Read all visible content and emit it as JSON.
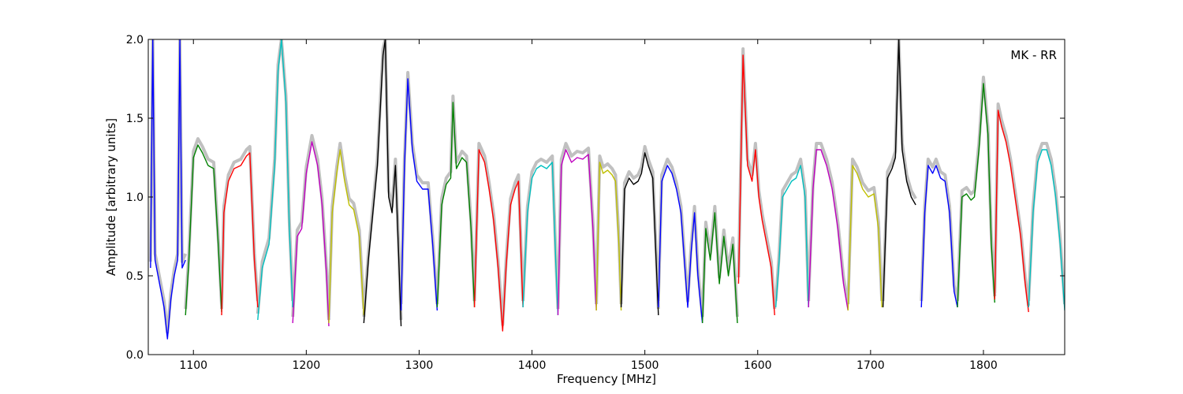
{
  "chart_data": {
    "type": "line",
    "title": "",
    "annotation": "MK - RR",
    "xlabel": "Frequency [MHz]",
    "ylabel": "Amplitude [arbitrary units]",
    "xlim": [
      1060,
      1872
    ],
    "ylim": [
      0.0,
      2.0
    ],
    "xticks": [
      1100,
      1200,
      1300,
      1400,
      1500,
      1600,
      1700,
      1800
    ],
    "xtick_labels": [
      "1100",
      "1200",
      "1300",
      "1400",
      "1500",
      "1600",
      "1700",
      "1800"
    ],
    "yticks": [
      0.0,
      0.5,
      1.0,
      1.5,
      2.0
    ],
    "ytick_labels": [
      "0.0",
      "0.5",
      "1.0",
      "1.5",
      "2.0"
    ],
    "grid": false,
    "legend": "none",
    "background_color": "#c0c0c0",
    "series": [
      {
        "color": "#0000ff",
        "points": [
          [
            1062,
            0.55
          ],
          [
            1064,
            2.0
          ],
          [
            1066,
            0.6
          ],
          [
            1070,
            0.45
          ],
          [
            1074,
            0.3
          ],
          [
            1077,
            0.1
          ],
          [
            1080,
            0.35
          ],
          [
            1083,
            0.5
          ],
          [
            1086,
            0.6
          ],
          [
            1088,
            2.0
          ],
          [
            1090,
            0.55
          ],
          [
            1093,
            0.6
          ]
        ]
      },
      {
        "color": "#008000",
        "points": [
          [
            1093,
            0.25
          ],
          [
            1096,
            0.6
          ],
          [
            1100,
            1.25
          ],
          [
            1104,
            1.33
          ],
          [
            1108,
            1.28
          ],
          [
            1113,
            1.2
          ],
          [
            1118,
            1.18
          ],
          [
            1122,
            0.7
          ],
          [
            1125,
            0.27
          ]
        ]
      },
      {
        "color": "#ff0000",
        "points": [
          [
            1125,
            0.25
          ],
          [
            1127,
            0.9
          ],
          [
            1131,
            1.1
          ],
          [
            1136,
            1.18
          ],
          [
            1142,
            1.2
          ],
          [
            1147,
            1.26
          ],
          [
            1150,
            1.28
          ],
          [
            1154,
            0.6
          ],
          [
            1157,
            0.3
          ]
        ]
      },
      {
        "color": "#00bfbf",
        "points": [
          [
            1157,
            0.22
          ],
          [
            1161,
            0.55
          ],
          [
            1167,
            0.7
          ],
          [
            1172,
            1.2
          ],
          [
            1175,
            1.8
          ],
          [
            1178,
            2.0
          ],
          [
            1182,
            1.6
          ],
          [
            1185,
            0.8
          ],
          [
            1188,
            0.3
          ]
        ]
      },
      {
        "color": "#bf00bf",
        "points": [
          [
            1188,
            0.2
          ],
          [
            1192,
            0.75
          ],
          [
            1196,
            0.8
          ],
          [
            1200,
            1.15
          ],
          [
            1205,
            1.35
          ],
          [
            1210,
            1.2
          ],
          [
            1214,
            0.95
          ],
          [
            1218,
            0.5
          ],
          [
            1220,
            0.18
          ]
        ]
      },
      {
        "color": "#bfbf00",
        "points": [
          [
            1220,
            0.2
          ],
          [
            1223,
            0.9
          ],
          [
            1227,
            1.15
          ],
          [
            1230,
            1.3
          ],
          [
            1234,
            1.1
          ],
          [
            1238,
            0.95
          ],
          [
            1242,
            0.92
          ],
          [
            1247,
            0.75
          ],
          [
            1251,
            0.25
          ]
        ]
      },
      {
        "color": "#000000",
        "points": [
          [
            1251,
            0.2
          ],
          [
            1255,
            0.6
          ],
          [
            1259,
            0.9
          ],
          [
            1263,
            1.2
          ],
          [
            1268,
            1.9
          ],
          [
            1270,
            2.0
          ],
          [
            1273,
            1.0
          ],
          [
            1276,
            0.9
          ],
          [
            1279,
            1.2
          ],
          [
            1282,
            0.6
          ],
          [
            1284,
            0.18
          ]
        ]
      },
      {
        "color": "#0000ff",
        "points": [
          [
            1284,
            0.28
          ],
          [
            1287,
            1.2
          ],
          [
            1290,
            1.75
          ],
          [
            1294,
            1.3
          ],
          [
            1298,
            1.1
          ],
          [
            1303,
            1.05
          ],
          [
            1308,
            1.05
          ],
          [
            1312,
            0.7
          ],
          [
            1316,
            0.28
          ]
        ]
      },
      {
        "color": "#008000",
        "points": [
          [
            1316,
            0.3
          ],
          [
            1320,
            0.95
          ],
          [
            1324,
            1.08
          ],
          [
            1328,
            1.12
          ],
          [
            1330,
            1.6
          ],
          [
            1333,
            1.18
          ],
          [
            1338,
            1.25
          ],
          [
            1342,
            1.22
          ],
          [
            1346,
            0.8
          ],
          [
            1349,
            0.3
          ]
        ]
      },
      {
        "color": "#ff0000",
        "points": [
          [
            1349,
            0.3
          ],
          [
            1353,
            1.3
          ],
          [
            1358,
            1.22
          ],
          [
            1362,
            1.05
          ],
          [
            1366,
            0.85
          ],
          [
            1370,
            0.55
          ],
          [
            1374,
            0.15
          ],
          [
            1377,
            0.55
          ],
          [
            1381,
            0.95
          ],
          [
            1385,
            1.05
          ],
          [
            1388,
            1.1
          ],
          [
            1392,
            0.3
          ]
        ]
      },
      {
        "color": "#00bfbf",
        "points": [
          [
            1392,
            0.3
          ],
          [
            1396,
            0.9
          ],
          [
            1400,
            1.12
          ],
          [
            1404,
            1.18
          ],
          [
            1408,
            1.2
          ],
          [
            1413,
            1.18
          ],
          [
            1418,
            1.22
          ],
          [
            1421,
            0.6
          ],
          [
            1423,
            0.25
          ]
        ]
      },
      {
        "color": "#bf00bf",
        "points": [
          [
            1423,
            0.25
          ],
          [
            1426,
            1.2
          ],
          [
            1430,
            1.3
          ],
          [
            1435,
            1.22
          ],
          [
            1440,
            1.25
          ],
          [
            1445,
            1.24
          ],
          [
            1450,
            1.27
          ],
          [
            1454,
            0.8
          ],
          [
            1457,
            0.28
          ]
        ]
      },
      {
        "color": "#bfbf00",
        "points": [
          [
            1457,
            0.28
          ],
          [
            1460,
            1.22
          ],
          [
            1463,
            1.15
          ],
          [
            1467,
            1.17
          ],
          [
            1471,
            1.14
          ],
          [
            1474,
            1.1
          ],
          [
            1477,
            0.7
          ],
          [
            1479,
            0.28
          ]
        ]
      },
      {
        "color": "#000000",
        "points": [
          [
            1479,
            0.3
          ],
          [
            1482,
            1.05
          ],
          [
            1486,
            1.12
          ],
          [
            1490,
            1.08
          ],
          [
            1494,
            1.1
          ],
          [
            1497,
            1.15
          ],
          [
            1500,
            1.28
          ],
          [
            1503,
            1.2
          ],
          [
            1507,
            1.12
          ],
          [
            1510,
            0.6
          ],
          [
            1512,
            0.25
          ]
        ]
      },
      {
        "color": "#0000ff",
        "points": [
          [
            1512,
            0.3
          ],
          [
            1515,
            1.1
          ],
          [
            1520,
            1.2
          ],
          [
            1524,
            1.15
          ],
          [
            1528,
            1.05
          ],
          [
            1532,
            0.9
          ],
          [
            1535,
            0.6
          ],
          [
            1538,
            0.3
          ],
          [
            1541,
            0.65
          ],
          [
            1544,
            0.9
          ],
          [
            1547,
            0.5
          ],
          [
            1551,
            0.2
          ]
        ]
      },
      {
        "color": "#008000",
        "points": [
          [
            1551,
            0.2
          ],
          [
            1554,
            0.8
          ],
          [
            1558,
            0.6
          ],
          [
            1562,
            0.9
          ],
          [
            1566,
            0.45
          ],
          [
            1570,
            0.75
          ],
          [
            1574,
            0.5
          ],
          [
            1578,
            0.7
          ],
          [
            1582,
            0.2
          ]
        ]
      },
      {
        "color": "#ff0000",
        "points": [
          [
            1583,
            0.45
          ],
          [
            1587,
            1.9
          ],
          [
            1591,
            1.2
          ],
          [
            1595,
            1.1
          ],
          [
            1598,
            1.3
          ],
          [
            1601,
            1.0
          ],
          [
            1604,
            0.85
          ],
          [
            1608,
            0.7
          ],
          [
            1612,
            0.55
          ],
          [
            1615,
            0.25
          ]
        ]
      },
      {
        "color": "#00bfbf",
        "points": [
          [
            1616,
            0.3
          ],
          [
            1619,
            0.6
          ],
          [
            1622,
            1.0
          ],
          [
            1626,
            1.05
          ],
          [
            1630,
            1.1
          ],
          [
            1634,
            1.12
          ],
          [
            1638,
            1.2
          ],
          [
            1642,
            1.0
          ],
          [
            1645,
            0.3
          ]
        ]
      },
      {
        "color": "#bf00bf",
        "points": [
          [
            1645,
            0.3
          ],
          [
            1649,
            1.05
          ],
          [
            1652,
            1.3
          ],
          [
            1656,
            1.3
          ],
          [
            1661,
            1.2
          ],
          [
            1666,
            1.05
          ],
          [
            1671,
            0.8
          ],
          [
            1676,
            0.45
          ],
          [
            1680,
            0.28
          ]
        ]
      },
      {
        "color": "#bfbf00",
        "points": [
          [
            1680,
            0.28
          ],
          [
            1684,
            1.2
          ],
          [
            1688,
            1.15
          ],
          [
            1693,
            1.05
          ],
          [
            1698,
            1.0
          ],
          [
            1703,
            1.02
          ],
          [
            1707,
            0.8
          ],
          [
            1710,
            0.3
          ]
        ]
      },
      {
        "color": "#000000",
        "points": [
          [
            1711,
            0.3
          ],
          [
            1715,
            1.12
          ],
          [
            1719,
            1.18
          ],
          [
            1722,
            1.25
          ],
          [
            1725,
            2.0
          ],
          [
            1728,
            1.3
          ],
          [
            1732,
            1.1
          ],
          [
            1736,
            1.0
          ],
          [
            1740,
            0.95
          ]
        ]
      },
      {
        "color": "#0000ff",
        "points": [
          [
            1745,
            0.3
          ],
          [
            1748,
            0.9
          ],
          [
            1751,
            1.2
          ],
          [
            1755,
            1.15
          ],
          [
            1758,
            1.2
          ],
          [
            1762,
            1.12
          ],
          [
            1766,
            1.1
          ],
          [
            1770,
            0.9
          ],
          [
            1774,
            0.4
          ],
          [
            1777,
            0.3
          ]
        ]
      },
      {
        "color": "#008000",
        "points": [
          [
            1777,
            0.3
          ],
          [
            1781,
            1.0
          ],
          [
            1785,
            1.02
          ],
          [
            1789,
            0.98
          ],
          [
            1792,
            1.0
          ],
          [
            1796,
            1.3
          ],
          [
            1800,
            1.72
          ],
          [
            1804,
            1.4
          ],
          [
            1807,
            0.7
          ],
          [
            1810,
            0.33
          ]
        ]
      },
      {
        "color": "#ff0000",
        "points": [
          [
            1810,
            0.35
          ],
          [
            1813,
            1.55
          ],
          [
            1816,
            1.45
          ],
          [
            1820,
            1.35
          ],
          [
            1824,
            1.2
          ],
          [
            1828,
            1.0
          ],
          [
            1833,
            0.75
          ],
          [
            1837,
            0.45
          ],
          [
            1840,
            0.27
          ]
        ]
      },
      {
        "color": "#00bfbf",
        "points": [
          [
            1840,
            0.3
          ],
          [
            1844,
            0.9
          ],
          [
            1848,
            1.22
          ],
          [
            1852,
            1.3
          ],
          [
            1856,
            1.3
          ],
          [
            1860,
            1.2
          ],
          [
            1864,
            1.0
          ],
          [
            1868,
            0.7
          ],
          [
            1872,
            0.28
          ]
        ]
      }
    ]
  }
}
